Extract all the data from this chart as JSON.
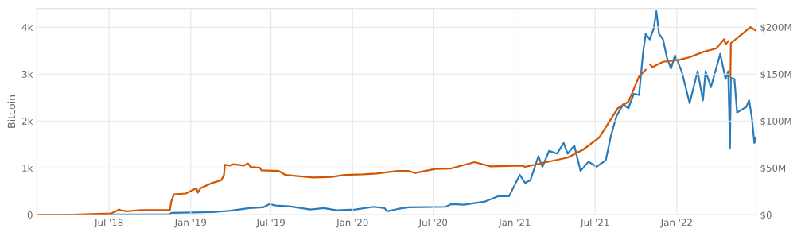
{
  "chart_data": {
    "type": "line",
    "ylabel": "Bitcoin",
    "grid": true,
    "line_style": "solid",
    "marker": "none",
    "xlim": [
      "2018-01-19",
      "2022-06-29"
    ],
    "xticks": [
      {
        "value": "2018-07-01",
        "label": "Jul '18"
      },
      {
        "value": "2019-01-01",
        "label": "Jan '19"
      },
      {
        "value": "2019-07-01",
        "label": "Jul '19"
      },
      {
        "value": "2020-01-01",
        "label": "Jan '20"
      },
      {
        "value": "2020-07-01",
        "label": "Jul '20"
      },
      {
        "value": "2021-01-01",
        "label": "Jan '21"
      },
      {
        "value": "2021-07-01",
        "label": "Jul '21"
      },
      {
        "value": "2022-01-01",
        "label": "Jan '22"
      }
    ],
    "ylim": [
      0,
      4400
    ],
    "yticks": [
      0,
      {
        "value": 1000,
        "label": "1k"
      },
      {
        "value": 2000,
        "label": "2k"
      },
      {
        "value": 3000,
        "label": "3k"
      },
      {
        "value": 4000,
        "label": "4k"
      }
    ],
    "y2lim": [
      0,
      220
    ],
    "y2ticks": [
      {
        "value": 0,
        "label": "$0"
      },
      {
        "value": 50,
        "label": "$50M"
      },
      {
        "value": 100,
        "label": "$100M"
      },
      {
        "value": 150,
        "label": "$150M"
      },
      {
        "value": 200,
        "label": "$200M"
      }
    ],
    "series": [
      {
        "color": "#d45500",
        "x": [
          "2018-01-19",
          "2018-03-27",
          "2018-07-06",
          "2018-07-24",
          "2018-07-27",
          "2018-08-11",
          "2018-09-10",
          "2018-11-15",
          "2018-11-18",
          "2018-11-24",
          "2018-12-21",
          "2019-01-14",
          "2019-01-17",
          "2019-01-23",
          "2019-02-19",
          "2019-03-11",
          "2019-03-17",
          "2019-03-19",
          "2019-04-01",
          "2019-04-07",
          "2019-05-01",
          "2019-05-10",
          "2019-05-16",
          "2019-06-06",
          "2019-06-09",
          "2019-07-18",
          "2019-08-02",
          "2019-10-04",
          "2019-11-15",
          "2019-12-14",
          "2020-01-25",
          "2020-02-24",
          "2020-04-12",
          "2020-05-06",
          "2020-05-21",
          "2020-07-05",
          "2020-08-10",
          "2020-10-02",
          "2020-11-07",
          "2021-01-18",
          "2021-01-24",
          "2021-03-13",
          "2021-04-30",
          "2021-06-04",
          "2021-07-10",
          "2021-08-21",
          "2021-09-14",
          "2021-09-23",
          "2021-10-08",
          "2021-10-23",
          "2021-10-28",
          "2021-11-02",
          "2021-11-07",
          "2021-12-01",
          "2022-01-06",
          "2022-01-30",
          "2022-03-01",
          "2022-03-31",
          "2022-04-18",
          "2022-04-21",
          "2022-04-27",
          "2022-04-29",
          "2022-05-02",
          "2022-05-03",
          "2022-05-29",
          "2022-06-16",
          "2022-06-28"
        ],
        "values": [
          0,
          0,
          30,
          113,
          96,
          74,
          102,
          102,
          284,
          437,
          454,
          567,
          471,
          567,
          681,
          738,
          851,
          1067,
          1050,
          1078,
          1050,
          1095,
          1021,
          1004,
          948,
          936,
          851,
          794,
          806,
          851,
          862,
          879,
          936,
          936,
          891,
          976,
          987,
          1123,
          1033,
          1050,
          1021,
          1123,
          1220,
          1390,
          1645,
          2270,
          2411,
          2610,
          2950,
          3092,
          null,
          3206,
          3149,
          3262,
          3302,
          3359,
          3472,
          3546,
          3745,
          3631,
          3700,
          null,
          2950,
          3660,
          3858,
          4000,
          3926
        ]
      },
      {
        "color": "#2b7bba",
        "axis": "y2",
        "x": [
          "2018-01-19",
          "2018-11-15",
          "2018-11-18",
          "2019-02-19",
          "2019-04-01",
          "2019-05-13",
          "2019-06-13",
          "2019-06-27",
          "2019-07-12",
          "2019-08-11",
          "2019-09-28",
          "2019-10-28",
          "2019-11-26",
          "2020-01-07",
          "2020-02-18",
          "2020-03-13",
          "2020-03-19",
          "2020-04-12",
          "2020-05-06",
          "2020-07-29",
          "2020-08-10",
          "2020-09-08",
          "2020-10-26",
          "2020-11-25",
          "2020-12-19",
          "2021-01-12",
          "2021-01-24",
          "2021-02-05",
          "2021-02-23",
          "2021-03-04",
          "2021-03-19",
          "2021-04-06",
          "2021-04-21",
          "2021-04-30",
          "2021-05-15",
          "2021-05-29",
          "2021-06-16",
          "2021-07-04",
          "2021-07-25",
          "2021-08-06",
          "2021-08-18",
          "2021-09-02",
          "2021-09-14",
          "2021-09-26",
          "2021-10-08",
          "2021-10-17",
          "2021-10-23",
          "2021-11-01",
          "2021-11-10",
          "2021-11-16",
          "2021-11-22",
          "2021-12-01",
          "2021-12-10",
          "2021-12-19",
          "2021-12-28",
          "2022-01-12",
          "2022-01-30",
          "2022-02-17",
          "2022-03-01",
          "2022-03-07",
          "2022-03-19",
          "2022-04-09",
          "2022-04-21",
          "2022-04-27",
          "2022-05-01",
          "2022-05-03",
          "2022-05-11",
          "2022-05-17",
          "2022-06-07",
          "2022-06-13",
          "2022-06-19",
          "2022-06-25",
          "2022-06-28"
        ],
        "values": [
          0,
          0.6,
          2,
          2.8,
          4.3,
          7.1,
          7.9,
          11.3,
          9.9,
          9.1,
          5.7,
          7.1,
          4.8,
          5.7,
          8.5,
          7.1,
          3.7,
          6.2,
          7.9,
          8.5,
          11.3,
          10.8,
          14.2,
          19.9,
          19.9,
          42.6,
          34,
          36.9,
          62.4,
          51.1,
          68.1,
          65.2,
          76.6,
          65.2,
          73.8,
          46.8,
          56.7,
          51.1,
          58.2,
          85.1,
          105,
          117.7,
          113.5,
          129,
          127.7,
          173,
          192.9,
          187,
          198.6,
          217,
          192.9,
          187,
          167,
          156,
          170,
          153,
          119,
          153,
          122,
          153,
          136,
          171.6,
          144.7,
          153,
          70.9,
          146,
          144.7,
          109,
          115,
          122,
          105,
          76.6,
          82.3
        ]
      }
    ]
  }
}
